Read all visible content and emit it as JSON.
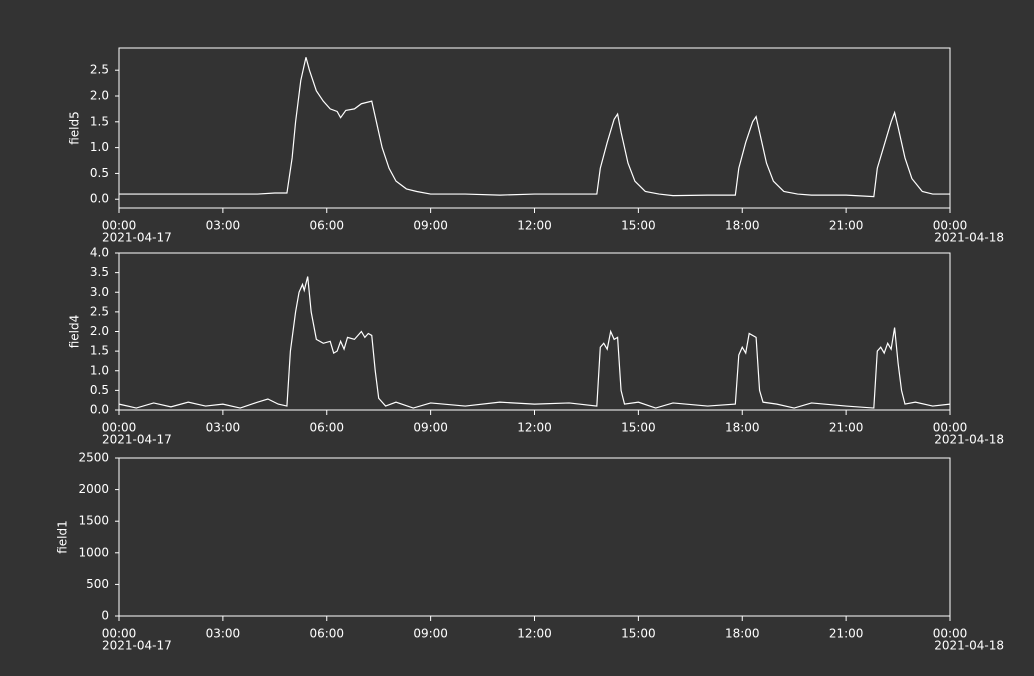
{
  "chart_data": [
    {
      "type": "line",
      "ylabel": "field5",
      "x": [
        0,
        1,
        2,
        3,
        4,
        4.5,
        4.85,
        5.0,
        5.1,
        5.25,
        5.4,
        5.5,
        5.7,
        5.9,
        6.1,
        6.3,
        6.4,
        6.55,
        6.8,
        7.0,
        7.3,
        7.4,
        7.6,
        7.8,
        8.0,
        8.3,
        8.6,
        9,
        10,
        11,
        12,
        13,
        13.8,
        13.9,
        14.1,
        14.3,
        14.4,
        14.5,
        14.7,
        14.9,
        15.2,
        15.6,
        16,
        17,
        17.8,
        17.9,
        18.1,
        18.3,
        18.4,
        18.5,
        18.7,
        18.9,
        19.2,
        19.6,
        20,
        21,
        21.8,
        21.9,
        22.1,
        22.3,
        22.4,
        22.5,
        22.7,
        22.9,
        23.2,
        23.5,
        24
      ],
      "series": [
        {
          "name": "field5",
          "color": "#ffffff",
          "values": [
            0.1,
            0.1,
            0.1,
            0.1,
            0.1,
            0.12,
            0.12,
            0.8,
            1.5,
            2.3,
            2.75,
            2.5,
            2.1,
            1.9,
            1.75,
            1.7,
            1.58,
            1.72,
            1.75,
            1.85,
            1.9,
            1.6,
            1.0,
            0.6,
            0.35,
            0.2,
            0.15,
            0.1,
            0.1,
            0.08,
            0.1,
            0.1,
            0.1,
            0.6,
            1.1,
            1.55,
            1.65,
            1.3,
            0.7,
            0.35,
            0.15,
            0.1,
            0.07,
            0.08,
            0.08,
            0.6,
            1.1,
            1.5,
            1.6,
            1.3,
            0.7,
            0.35,
            0.15,
            0.1,
            0.08,
            0.08,
            0.05,
            0.6,
            1.05,
            1.5,
            1.68,
            1.4,
            0.8,
            0.4,
            0.15,
            0.1,
            0.1
          ]
        }
      ],
      "xlim": [
        0,
        24
      ],
      "xticks": [
        {
          "value": 0,
          "label": "00:00"
        },
        {
          "value": 3,
          "label": "03:00"
        },
        {
          "value": 6,
          "label": "06:00"
        },
        {
          "value": 9,
          "label": "09:00"
        },
        {
          "value": 12,
          "label": "12:00"
        },
        {
          "value": 15,
          "label": "15:00"
        },
        {
          "value": 18,
          "label": "18:00"
        },
        {
          "value": 21,
          "label": "21:00"
        },
        {
          "value": 24,
          "label": "00:00"
        }
      ],
      "start_date": "2021-04-17",
      "end_date": "2021-04-18",
      "ylim": [
        -0.17,
        2.93
      ],
      "yticks": [
        {
          "value": 0,
          "label": "0.0"
        },
        {
          "value": 0.5,
          "label": "0.5"
        },
        {
          "value": 1,
          "label": "1.0"
        },
        {
          "value": 1.5,
          "label": "1.5"
        },
        {
          "value": 2,
          "label": "2.0"
        },
        {
          "value": 2.5,
          "label": "2.5"
        }
      ]
    },
    {
      "type": "line",
      "ylabel": "field4",
      "x": [
        0,
        0.5,
        1,
        1.5,
        2,
        2.5,
        3,
        3.5,
        4,
        4.3,
        4.6,
        4.85,
        4.95,
        5.1,
        5.2,
        5.3,
        5.35,
        5.45,
        5.55,
        5.7,
        5.9,
        6.1,
        6.2,
        6.3,
        6.4,
        6.5,
        6.6,
        6.8,
        7.0,
        7.1,
        7.2,
        7.3,
        7.4,
        7.5,
        7.7,
        8,
        8.5,
        9,
        10,
        11,
        12,
        13,
        13.8,
        13.9,
        14.0,
        14.1,
        14.2,
        14.3,
        14.4,
        14.5,
        14.6,
        15,
        15.5,
        16,
        17,
        17.8,
        17.9,
        18.0,
        18.1,
        18.2,
        18.4,
        18.5,
        18.6,
        19,
        19.5,
        20,
        21,
        21.8,
        21.9,
        22.0,
        22.1,
        22.2,
        22.3,
        22.4,
        22.5,
        22.6,
        22.7,
        23,
        23.5,
        24
      ],
      "series": [
        {
          "name": "field4",
          "color": "#ffffff",
          "values": [
            0.15,
            0.05,
            0.18,
            0.08,
            0.2,
            0.1,
            0.15,
            0.05,
            0.2,
            0.28,
            0.15,
            0.1,
            1.5,
            2.5,
            3.0,
            3.2,
            3.05,
            3.4,
            2.5,
            1.8,
            1.7,
            1.75,
            1.45,
            1.5,
            1.75,
            1.55,
            1.85,
            1.8,
            2.0,
            1.85,
            1.95,
            1.9,
            1.0,
            0.3,
            0.1,
            0.2,
            0.05,
            0.18,
            0.1,
            0.2,
            0.15,
            0.18,
            0.1,
            1.6,
            1.7,
            1.55,
            2.0,
            1.8,
            1.85,
            0.5,
            0.15,
            0.2,
            0.05,
            0.18,
            0.1,
            0.15,
            1.4,
            1.6,
            1.45,
            1.95,
            1.85,
            0.5,
            0.2,
            0.15,
            0.05,
            0.18,
            0.1,
            0.05,
            1.5,
            1.6,
            1.45,
            1.7,
            1.55,
            2.1,
            1.2,
            0.5,
            0.15,
            0.2,
            0.1,
            0.15
          ]
        }
      ],
      "xlim": [
        0,
        24
      ],
      "xticks": [
        {
          "value": 0,
          "label": "00:00"
        },
        {
          "value": 3,
          "label": "03:00"
        },
        {
          "value": 6,
          "label": "06:00"
        },
        {
          "value": 9,
          "label": "09:00"
        },
        {
          "value": 12,
          "label": "12:00"
        },
        {
          "value": 15,
          "label": "15:00"
        },
        {
          "value": 18,
          "label": "18:00"
        },
        {
          "value": 21,
          "label": "21:00"
        },
        {
          "value": 24,
          "label": "00:00"
        }
      ],
      "start_date": "2021-04-17",
      "end_date": "2021-04-18",
      "ylim": [
        0,
        4
      ],
      "yticks": [
        {
          "value": 0,
          "label": "0.0"
        },
        {
          "value": 0.5,
          "label": "0.5"
        },
        {
          "value": 1,
          "label": "1.0"
        },
        {
          "value": 1.5,
          "label": "1.5"
        },
        {
          "value": 2,
          "label": "2.0"
        },
        {
          "value": 2.5,
          "label": "2.5"
        },
        {
          "value": 3,
          "label": "3.0"
        },
        {
          "value": 3.5,
          "label": "3.5"
        },
        {
          "value": 4,
          "label": "4.0"
        }
      ]
    },
    {
      "type": "line",
      "ylabel": "field1",
      "xlim": [
        0,
        24
      ],
      "xticks": [
        {
          "value": 0,
          "label": "00:00"
        },
        {
          "value": 3,
          "label": "03:00"
        },
        {
          "value": 6,
          "label": "06:00"
        },
        {
          "value": 9,
          "label": "09:00"
        },
        {
          "value": 12,
          "label": "12:00"
        },
        {
          "value": 15,
          "label": "15:00"
        },
        {
          "value": 18,
          "label": "18:00"
        },
        {
          "value": 21,
          "label": "21:00"
        },
        {
          "value": 24,
          "label": "00:00"
        }
      ],
      "start_date": "2021-04-17",
      "end_date": "2021-04-18",
      "ylim": [
        0,
        2500
      ],
      "yticks": [
        0,
        500,
        1000,
        1500,
        2000,
        2500
      ]
    }
  ]
}
